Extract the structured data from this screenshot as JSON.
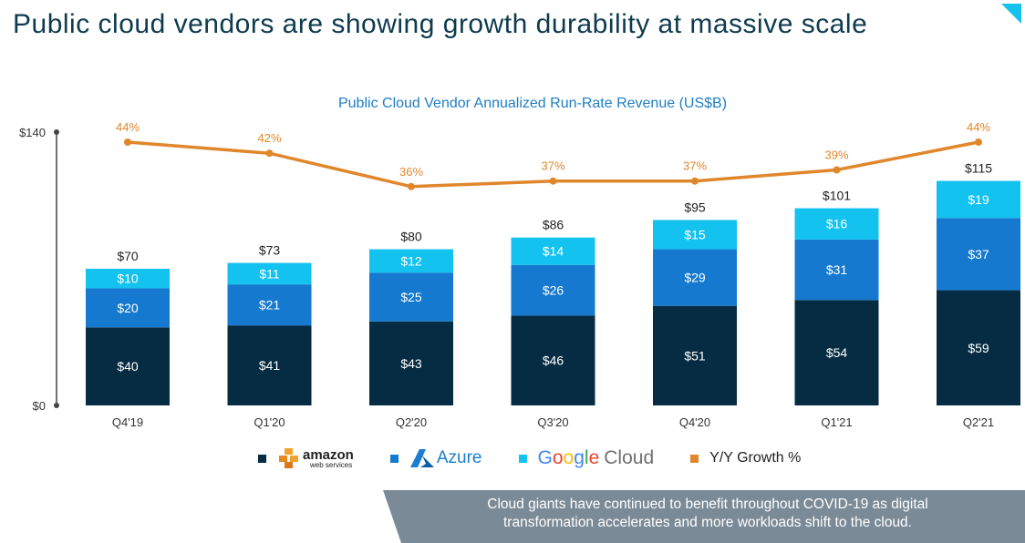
{
  "slide_title": "Public cloud vendors are showing growth durability at massive scale",
  "legend": {
    "aws_logo_main": "amazon",
    "aws_logo_sub": "web services",
    "azure_logo": "Azure",
    "google_logo_letters": [
      "G",
      "o",
      "o",
      "g",
      "l",
      "e"
    ],
    "google_logo_cloud": "Cloud",
    "growth": "Y/Y Growth %"
  },
  "callout": {
    "line1": "Cloud giants have continued to benefit throughout COVID-19 as digital",
    "line2": "transformation accelerates and more workloads shift to the cloud."
  },
  "colors": {
    "aws": "#062c43",
    "azure": "#1479cf",
    "google": "#13c2ef",
    "growth": "#e0872c",
    "callout_bg": "#7b8a97",
    "title": "#0f3b4f",
    "subtitle": "#1f7ec4"
  },
  "chart_data": {
    "type": "bar",
    "stacked": true,
    "title": "Public Cloud Vendor Annualized Run-Rate Revenue (US$B)",
    "categories": [
      "Q4'19",
      "Q1'20",
      "Q2'20",
      "Q3'20",
      "Q4'20",
      "Q1'21",
      "Q2'21"
    ],
    "series": [
      {
        "name": "amazon web services",
        "values": [
          40,
          41,
          43,
          46,
          51,
          54,
          59
        ]
      },
      {
        "name": "Azure",
        "values": [
          20,
          21,
          25,
          26,
          29,
          31,
          37
        ]
      },
      {
        "name": "Google Cloud",
        "values": [
          10,
          11,
          12,
          14,
          15,
          16,
          19
        ]
      }
    ],
    "segment_labels": [
      [
        "$40",
        "$41",
        "$43",
        "$46",
        "$51",
        "$54",
        "$59"
      ],
      [
        "$20",
        "$21",
        "$25",
        "$26",
        "$29",
        "$31",
        "$37"
      ],
      [
        "$10",
        "$11",
        "$12",
        "$14",
        "$15",
        "$16",
        "$19"
      ]
    ],
    "totals": [
      70,
      73,
      80,
      86,
      95,
      101,
      115
    ],
    "total_labels": [
      "$70",
      "$73",
      "$80",
      "$86",
      "$95",
      "$101",
      "$115"
    ],
    "growth_line": {
      "name": "Y/Y Growth %",
      "values": [
        44,
        42,
        36,
        37,
        37,
        39,
        44
      ],
      "labels": [
        "44%",
        "42%",
        "36%",
        "37%",
        "37%",
        "39%",
        "44%"
      ]
    },
    "y_axis": {
      "ylim": [
        0,
        140
      ],
      "tick_labels": [
        "$0",
        "$140"
      ]
    },
    "grid": false,
    "legend_position": "bottom"
  }
}
